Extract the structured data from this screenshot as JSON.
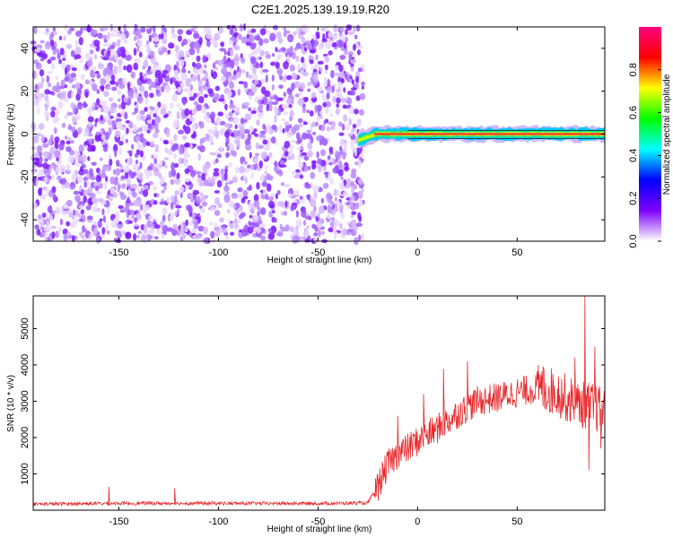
{
  "title": "C2E1.2025.139.19.19.R20",
  "chart_data": [
    {
      "type": "heatmap",
      "xlabel": "Height of straight line (km)",
      "ylabel": "Frequency (Hz)",
      "xlim": [
        -193,
        94
      ],
      "ylim": [
        -50,
        50
      ],
      "x_ticks": [
        -150,
        -100,
        -50,
        0,
        50
      ],
      "y_ticks": [
        -40,
        -20,
        0,
        20,
        40
      ],
      "colorbar": {
        "label": "Normalized spectral amplitude",
        "range": [
          0,
          1
        ],
        "ticks": [
          0.0,
          0.2,
          0.4,
          0.6,
          0.8
        ],
        "colormap": [
          "#ffffff",
          "#8000ff",
          "#0000ff",
          "#00ffff",
          "#00ff00",
          "#ffff00",
          "#ff0000",
          "#ff0080"
        ]
      },
      "noise_region_x": [
        -193,
        -30
      ],
      "signal_band": {
        "x": [
          -30,
          94
        ],
        "freq_hz": 0,
        "half_width_hz": 2.5,
        "start_freq_hz": -3
      }
    },
    {
      "type": "line",
      "xlabel": "Height of straight line (km)",
      "ylabel": "SNR (10 * v/v)",
      "xlim": [
        -193,
        94
      ],
      "ylim": [
        0,
        5900
      ],
      "x_ticks": [
        -150,
        -100,
        -50,
        0,
        50
      ],
      "y_ticks": [
        1000,
        2000,
        3000,
        4000,
        5000
      ],
      "series": [
        {
          "color": "#e8262a",
          "trend": [
            [
              -193,
              150
            ],
            [
              -150,
              170
            ],
            [
              -100,
              170
            ],
            [
              -50,
              165
            ],
            [
              -25,
              180
            ],
            [
              -20,
              650
            ],
            [
              -15,
              1250
            ],
            [
              -10,
              1550
            ],
            [
              -5,
              1700
            ],
            [
              0,
              1900
            ],
            [
              10,
              2250
            ],
            [
              20,
              2650
            ],
            [
              30,
              3000
            ],
            [
              40,
              3100
            ],
            [
              50,
              3250
            ],
            [
              60,
              3350
            ],
            [
              70,
              3250
            ],
            [
              80,
              2900
            ],
            [
              85,
              2900
            ],
            [
              90,
              2800
            ],
            [
              94,
              2700
            ]
          ],
          "spikes": [
            [
              -155,
              650
            ],
            [
              -122,
              600
            ],
            [
              84,
              5900
            ],
            [
              86,
              1100
            ],
            [
              79,
              4200
            ],
            [
              63,
              3950
            ],
            [
              25,
              4100
            ],
            [
              13,
              3900
            ],
            [
              3,
              3200
            ],
            [
              -10,
              2600
            ],
            [
              89,
              4500
            ],
            [
              92,
              1700
            ]
          ]
        }
      ]
    }
  ]
}
